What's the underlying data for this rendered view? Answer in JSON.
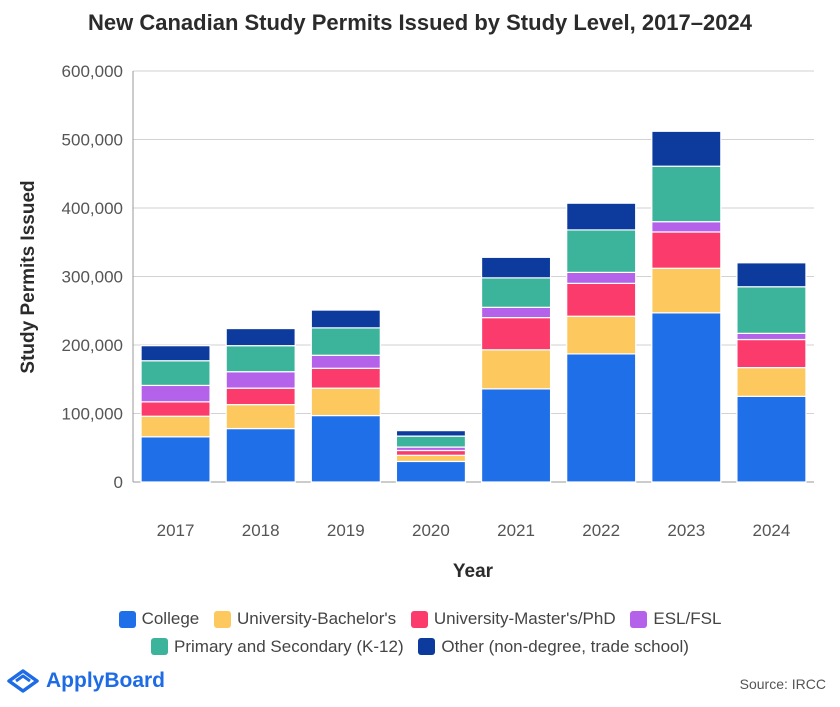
{
  "chart_data": {
    "type": "bar",
    "stacked": true,
    "title": "New Canadian Study Permits Issued by Study Level, 2017–2024",
    "xlabel": "Year",
    "ylabel": "Study Permits Issued",
    "ylim": [
      0,
      600000
    ],
    "yticks": [
      0,
      100000,
      200000,
      300000,
      400000,
      500000,
      600000
    ],
    "ytick_labels": [
      "0",
      "100,000",
      "200,000",
      "300,000",
      "400,000",
      "500,000",
      "600,000"
    ],
    "grid": true,
    "legend_position": "bottom",
    "categories": [
      "2017",
      "2018",
      "2019",
      "2020",
      "2021",
      "2022",
      "2023",
      "2024"
    ],
    "series": [
      {
        "name": "College",
        "color": "#1f6fe8",
        "values": [
          66000,
          78000,
          97000,
          30000,
          136000,
          187000,
          247000,
          125000
        ]
      },
      {
        "name": "University-Bachelor's",
        "color": "#fdc95f",
        "values": [
          30000,
          35000,
          40000,
          9000,
          57000,
          55000,
          65000,
          42000
        ]
      },
      {
        "name": "University-Master's/PhD",
        "color": "#fb3b6b",
        "values": [
          21000,
          24000,
          29000,
          7000,
          47000,
          48000,
          53000,
          41000
        ]
      },
      {
        "name": "ESL/FSL",
        "color": "#b462ea",
        "values": [
          24000,
          24000,
          19000,
          5000,
          15000,
          16000,
          15000,
          9000
        ]
      },
      {
        "name": "Primary and Secondary (K-12)",
        "color": "#3bb49b",
        "values": [
          36000,
          38000,
          40000,
          16000,
          43000,
          62000,
          81000,
          68000
        ]
      },
      {
        "name": "Other (non-degree, trade school)",
        "color": "#0c3a9d",
        "values": [
          22000,
          25000,
          26000,
          8000,
          30000,
          39000,
          51000,
          35000
        ]
      }
    ]
  },
  "branding": {
    "logo_text": "ApplyBoard",
    "logo_color": "#1e6be6"
  },
  "source_text": "Source: IRCC"
}
